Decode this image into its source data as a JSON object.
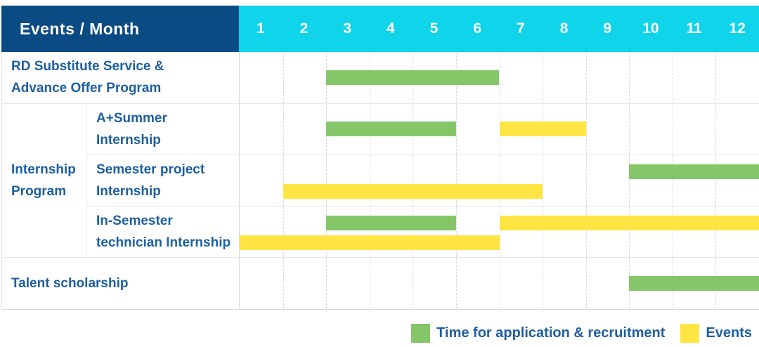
{
  "colors": {
    "application": "#85c668",
    "events": "#ffe544",
    "header_bg": "#0b4b84",
    "months_bg": "#0fd4ea",
    "label_text": "#1e5f9f"
  },
  "table": {
    "corner_label": "Events / Month",
    "months": [
      "1",
      "2",
      "3",
      "4",
      "5",
      "6",
      "7",
      "8",
      "9",
      "10",
      "11",
      "12"
    ],
    "group_label_lines": [
      "Internship",
      "Program"
    ],
    "rows": [
      {
        "label": "RD Substitute Service & Advance Offer Program",
        "label_lines": [
          "RD Substitute Service &",
          "Advance Offer Program"
        ],
        "bars": [
          {
            "kind": "application",
            "start": 3,
            "end": 6,
            "track": "single"
          }
        ]
      },
      {
        "label": "A+Summer Internship",
        "label_lines": [
          "A+Summer",
          "Internship"
        ],
        "bars": [
          {
            "kind": "application",
            "start": 3,
            "end": 5,
            "track": "single"
          },
          {
            "kind": "events",
            "start": 7,
            "end": 8,
            "track": "single"
          }
        ]
      },
      {
        "label": "Semester project Internship",
        "label_lines": [
          "Semester project",
          "Internship"
        ],
        "bars": [
          {
            "kind": "application",
            "start": 10,
            "end": 12,
            "track": "upper"
          },
          {
            "kind": "events",
            "start": 2,
            "end": 7,
            "track": "lower"
          }
        ]
      },
      {
        "label": "In-Semester technician Internship",
        "label_lines": [
          "In-Semester",
          "technician Internship"
        ],
        "bars": [
          {
            "kind": "application",
            "start": 3,
            "end": 5,
            "track": "upper"
          },
          {
            "kind": "events",
            "start": 7,
            "end": 12,
            "track": "upper"
          },
          {
            "kind": "events",
            "start": 1,
            "end": 6,
            "track": "lower"
          }
        ]
      },
      {
        "label": "Talent scholarship",
        "label_lines": [
          "Talent scholarship"
        ],
        "bars": [
          {
            "kind": "application",
            "start": 10,
            "end": 12,
            "track": "single"
          }
        ]
      }
    ]
  },
  "legend": [
    {
      "kind": "application",
      "label": "Time for application & recruitment",
      "color": "#85c668"
    },
    {
      "kind": "events",
      "label": "Events",
      "color": "#ffe544"
    }
  ],
  "chart_data": {
    "type": "bar",
    "subtype": "gantt",
    "title": "Events / Month",
    "x_axis": {
      "label": "Month",
      "ticks": [
        1,
        2,
        3,
        4,
        5,
        6,
        7,
        8,
        9,
        10,
        11,
        12
      ],
      "range": [
        1,
        12
      ]
    },
    "grid": true,
    "legend_position": "bottom-right",
    "series_legend": [
      "Time for application & recruitment",
      "Events"
    ],
    "rows": [
      {
        "category": "RD Substitute Service & Advance Offer Program",
        "group": null,
        "spans": [
          {
            "series": "Time for application & recruitment",
            "start_month": 3,
            "end_month": 6
          }
        ]
      },
      {
        "category": "A+Summer Internship",
        "group": "Internship Program",
        "spans": [
          {
            "series": "Time for application & recruitment",
            "start_month": 3,
            "end_month": 5
          },
          {
            "series": "Events",
            "start_month": 7,
            "end_month": 8
          }
        ]
      },
      {
        "category": "Semester project Internship",
        "group": "Internship Program",
        "spans": [
          {
            "series": "Time for application & recruitment",
            "start_month": 10,
            "end_month": 12
          },
          {
            "series": "Events",
            "start_month": 2,
            "end_month": 7
          }
        ]
      },
      {
        "category": "In-Semester technician Internship",
        "group": "Internship Program",
        "spans": [
          {
            "series": "Time for application & recruitment",
            "start_month": 3,
            "end_month": 5
          },
          {
            "series": "Events",
            "start_month": 7,
            "end_month": 12
          },
          {
            "series": "Events",
            "start_month": 1,
            "end_month": 6
          }
        ]
      },
      {
        "category": "Talent scholarship",
        "group": null,
        "spans": [
          {
            "series": "Time for application & recruitment",
            "start_month": 10,
            "end_month": 12
          }
        ]
      }
    ]
  }
}
